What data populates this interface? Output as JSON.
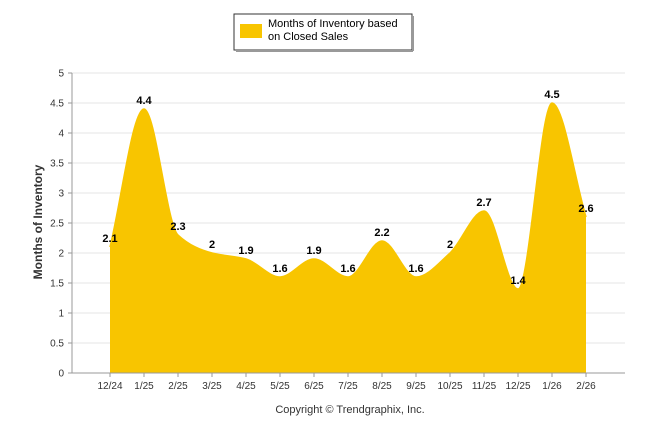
{
  "chart_data": {
    "type": "area",
    "categories": [
      "12/24",
      "1/25",
      "2/25",
      "3/25",
      "4/25",
      "5/25",
      "6/25",
      "7/25",
      "8/25",
      "9/25",
      "10/25",
      "11/25",
      "12/25",
      "1/26",
      "2/26"
    ],
    "series": [
      {
        "name": "Months of Inventory based on Closed Sales",
        "values": [
          2.1,
          4.4,
          2.3,
          2,
          1.9,
          1.6,
          1.9,
          1.6,
          2.2,
          1.6,
          2,
          2.7,
          1.4,
          4.5,
          2.6
        ],
        "labels": [
          "2.1",
          "4.4",
          "2.3",
          "2",
          "1.9",
          "1.6",
          "1.9",
          "1.6",
          "2.2",
          "1.6",
          "2",
          "2.7",
          "1.4",
          "4.5",
          "2.6"
        ]
      }
    ],
    "ylabel": "Months of Inventory",
    "xlabel": "",
    "ylim": [
      0,
      5
    ],
    "yticks": [
      "0",
      "0.5",
      "1",
      "1.5",
      "2",
      "2.5",
      "3",
      "3.5",
      "4",
      "4.5",
      "5"
    ],
    "grid": true,
    "legend_position": "top-center",
    "colors": {
      "fill": "#F8C500",
      "legend_border": "#333333",
      "grid": "#e6e6e6",
      "axis": "#999999"
    }
  },
  "footer": "Copyright © Trendgraphix, Inc."
}
